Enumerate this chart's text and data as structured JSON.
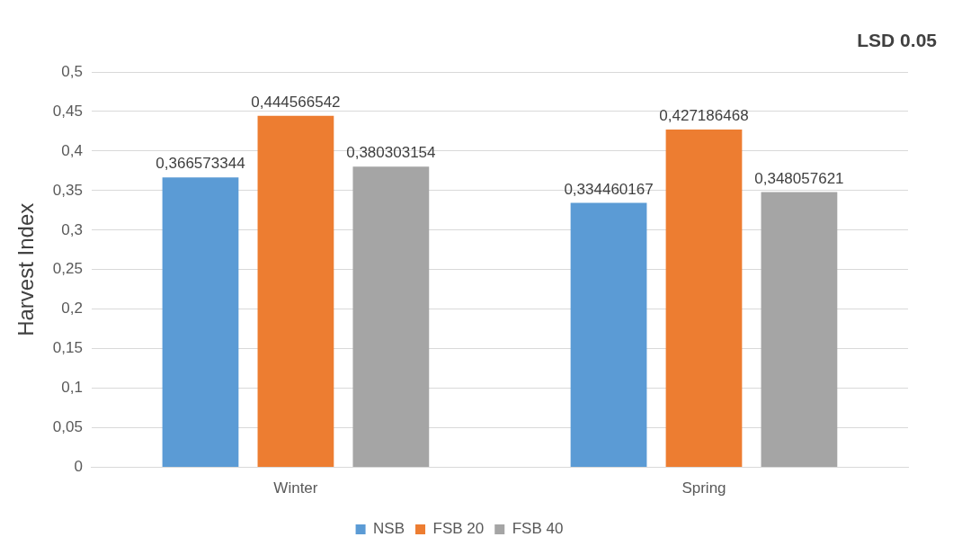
{
  "chart_data": {
    "type": "bar",
    "categories": [
      "Winter",
      "Spring"
    ],
    "ylabel": "Harvest Index",
    "annotations": [
      "LSD 0.05"
    ],
    "series": [
      {
        "name": "NSB",
        "color": "#5b9bd5",
        "values": [
          0.366573344,
          0.334460167
        ],
        "value_labels": [
          "0,366573344",
          "0,334460167"
        ]
      },
      {
        "name": "FSB 20",
        "color": "#ed7d31",
        "values": [
          0.444566542,
          0.427186468
        ],
        "value_labels": [
          "0,444566542",
          "0,427186468"
        ]
      },
      {
        "name": "FSB 40",
        "color": "#a5a5a5",
        "values": [
          0.380303154,
          0.348057621
        ],
        "value_labels": [
          "0,380303154",
          "0,348057621"
        ]
      }
    ],
    "ylim": [
      0,
      0.5
    ],
    "yticks": [
      {
        "value": 0,
        "label": "0"
      },
      {
        "value": 0.05,
        "label": "0,05"
      },
      {
        "value": 0.1,
        "label": "0,1"
      },
      {
        "value": 0.15,
        "label": "0,15"
      },
      {
        "value": 0.2,
        "label": "0,2"
      },
      {
        "value": 0.25,
        "label": "0,25"
      },
      {
        "value": 0.3,
        "label": "0,3"
      },
      {
        "value": 0.35,
        "label": "0,35"
      },
      {
        "value": 0.4,
        "label": "0,4"
      },
      {
        "value": 0.45,
        "label": "0,45"
      },
      {
        "value": 0.5,
        "label": "0,5"
      }
    ],
    "grid": "y",
    "legend": "bottom"
  }
}
